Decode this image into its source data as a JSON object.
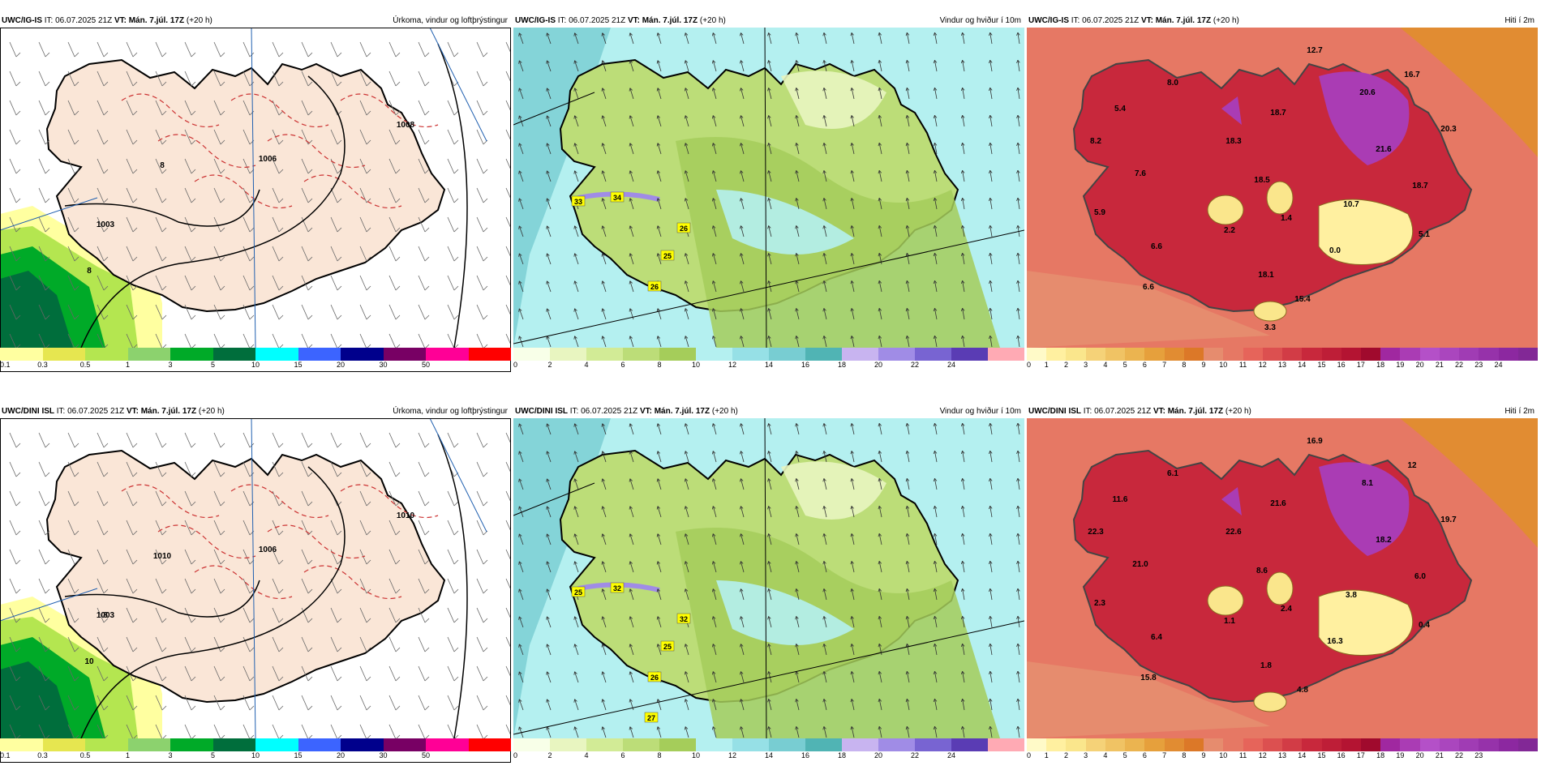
{
  "rows": [
    {
      "model": "UWC/IG-IS",
      "time_info": "IT: 06.07.2025 21Z",
      "valid_label": "VT: Mán. 7.júl. 17Z",
      "lead": "(+20 h)",
      "precip_labels": [
        "1003",
        "1006",
        "1008",
        "8",
        "8"
      ],
      "wind_labels": [
        "33",
        "34",
        "26",
        "25",
        "26"
      ],
      "temp_labels": [
        "12.7",
        "16.7",
        "8.0",
        "20.6",
        "5.4",
        "18.7",
        "8.2",
        "18.3",
        "20.3",
        "21.6",
        "7.6",
        "18.5",
        "18.7",
        "10.7",
        "5.9",
        "1.4",
        "2.2",
        "5.1",
        "0.0",
        "6.6",
        "18.1",
        "6.6",
        "15.4",
        "3.3"
      ]
    },
    {
      "model": "UWC/DINI ISL",
      "time_info": "IT: 06.07.2025 21Z",
      "valid_label": "VT: Mán. 7.júl. 17Z",
      "lead": "(+20 h)",
      "precip_labels": [
        "1003",
        "1006",
        "1010",
        "1010",
        "10",
        "8"
      ],
      "wind_labels": [
        "25",
        "32",
        "32",
        "25",
        "26",
        "27"
      ],
      "temp_labels": [
        "16.9",
        "12",
        "6.1",
        "8.1",
        "11.6",
        "21.6",
        "22.3",
        "22.6",
        "19.7",
        "18.2",
        "21.0",
        "8.6",
        "6.0",
        "3.8",
        "2.3",
        "2.4",
        "1.1",
        "0.4",
        "16.3",
        "6.4",
        "1.8",
        "15.8",
        "4.8"
      ]
    }
  ],
  "panels": {
    "precip": {
      "title": "Úrkoma, vindur og loftþrýstingur",
      "ticks": [
        "0.1",
        "0.3",
        "0.5",
        "1",
        "3",
        "5",
        "10",
        "15",
        "20",
        "30",
        "50"
      ],
      "colors": [
        "#ffffa0",
        "#e6e650",
        "#b4e650",
        "#8cd26e",
        "#00aa28",
        "#006e3c",
        "#00ffff",
        "#3c64ff",
        "#00008c",
        "#780064",
        "#ff0096",
        "#ff0000"
      ]
    },
    "wind": {
      "title": "Vindur og hviður í 10m",
      "ticks": [
        "0",
        "2",
        "4",
        "6",
        "8",
        "10",
        "12",
        "14",
        "16",
        "18",
        "20",
        "22",
        "24"
      ],
      "colors": [
        "#f8ffe8",
        "#e8f5c0",
        "#d2eb96",
        "#bcdd78",
        "#a5cd5a",
        "#b4f0f0",
        "#96e0e6",
        "#78cdd2",
        "#50b4b4",
        "#c8b4f0",
        "#a08ce6",
        "#7864d2",
        "#5a3cb4",
        "#ffaab4"
      ]
    },
    "temp": {
      "title": "Hiti í 2m",
      "ticks_row1": [
        "0",
        "1",
        "2",
        "3",
        "4",
        "5",
        "6",
        "7",
        "8",
        "9",
        "10",
        "11",
        "12",
        "13",
        "14",
        "15",
        "16",
        "17",
        "18",
        "19",
        "20",
        "21",
        "22",
        "23",
        "24"
      ],
      "ticks_row2": [
        "0",
        "1",
        "2",
        "3",
        "4",
        "5",
        "6",
        "7",
        "8",
        "9",
        "10",
        "11",
        "12",
        "13",
        "14",
        "15",
        "16",
        "17",
        "18",
        "19",
        "20",
        "21",
        "22",
        "23"
      ],
      "colors": [
        "#fffac8",
        "#fff0a0",
        "#fae68c",
        "#f5d278",
        "#f0c364",
        "#ebb450",
        "#e6a03c",
        "#e18c32",
        "#dc7828",
        "#e68c6e",
        "#e67864",
        "#e6645a",
        "#dc5050",
        "#d23c46",
        "#c8283c",
        "#be1e37",
        "#b41432",
        "#a00a2d",
        "#a028a0",
        "#aa3cb4",
        "#b450c8",
        "#aa46be",
        "#a03cb4",
        "#9632aa",
        "#8c28a0",
        "#822896"
      ]
    }
  }
}
